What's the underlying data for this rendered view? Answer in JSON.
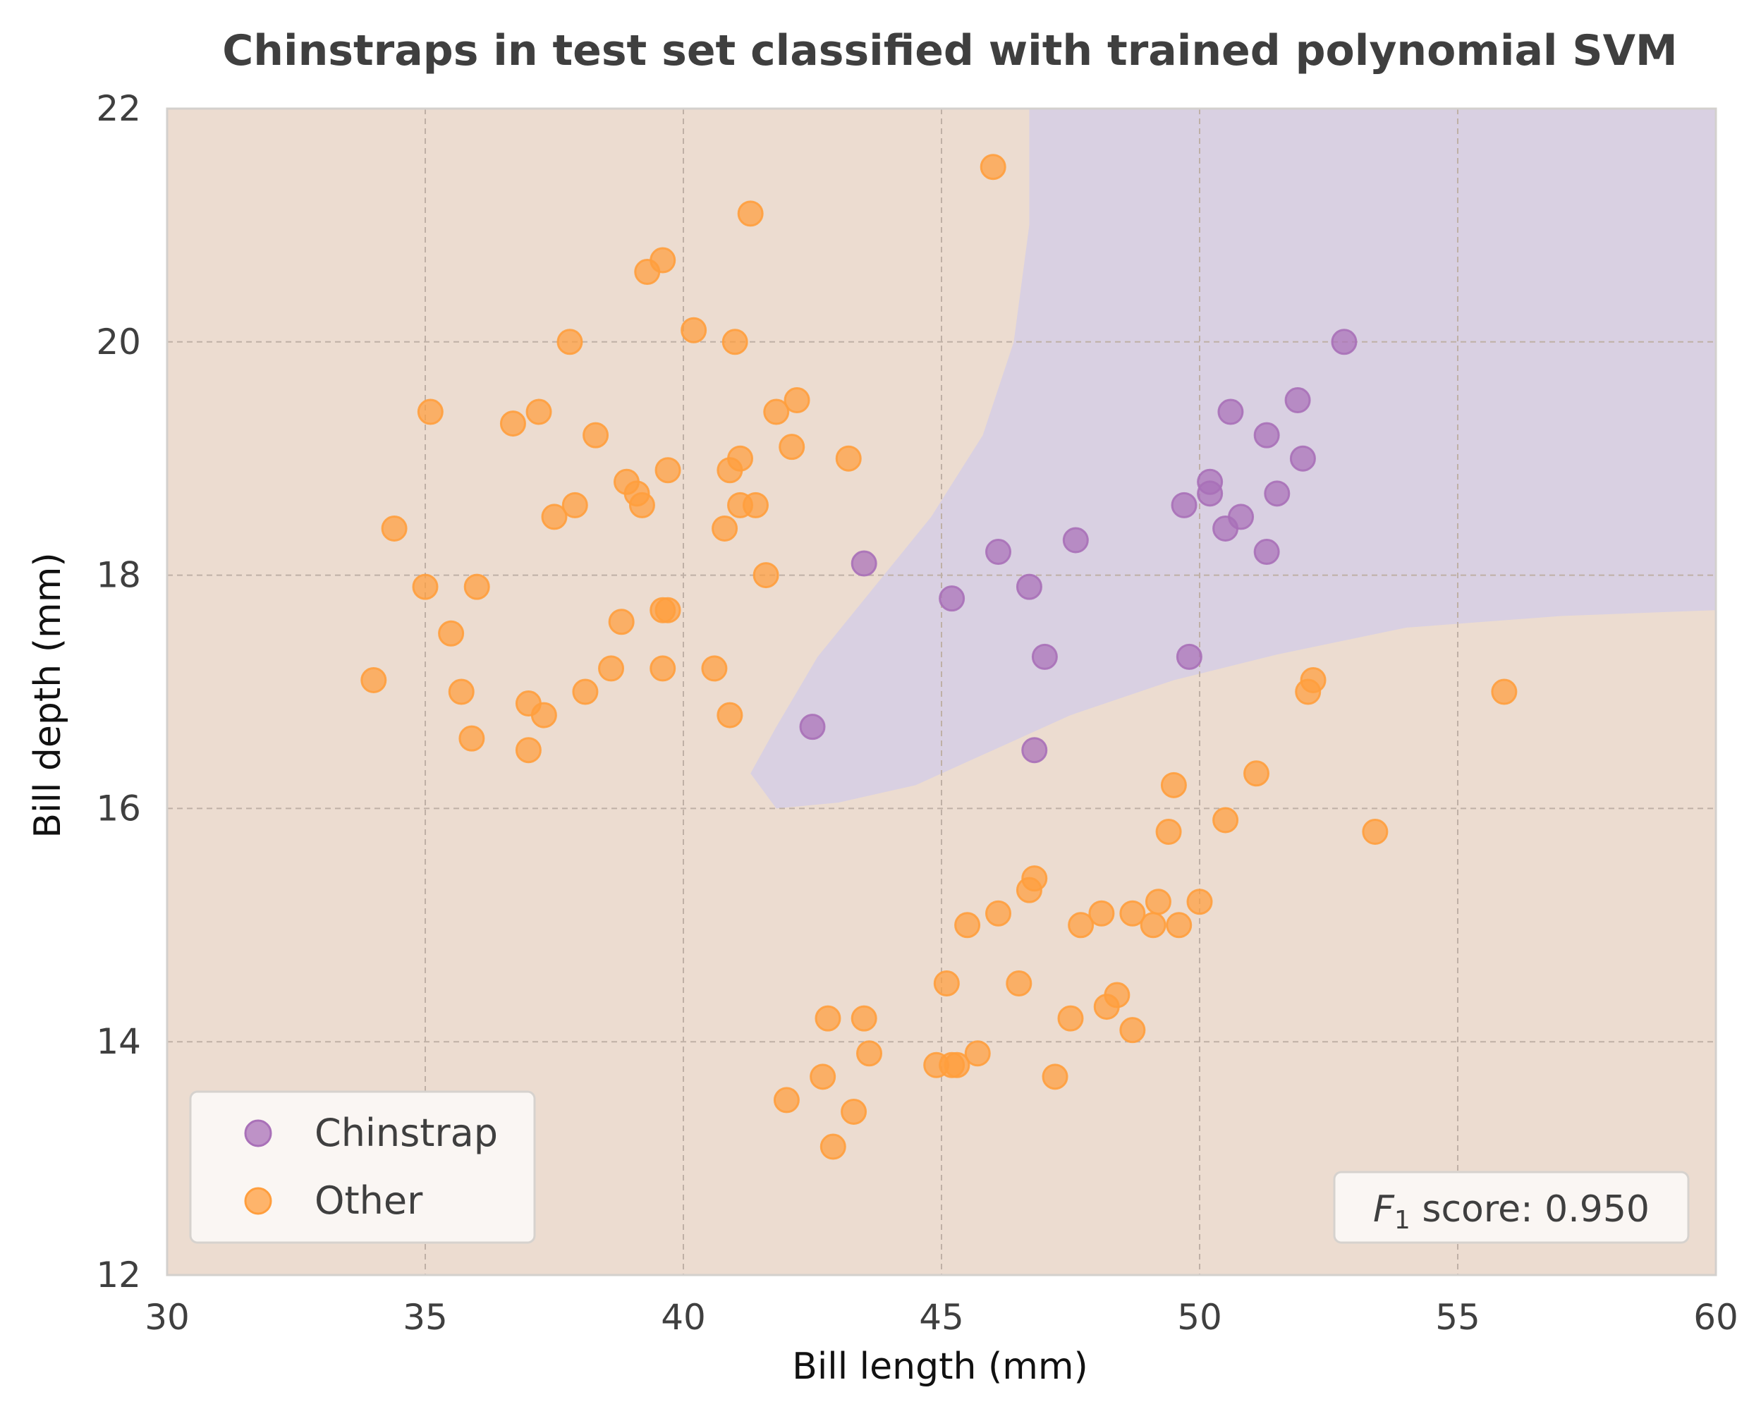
{
  "chart_data": {
    "type": "scatter",
    "title": "Chinstraps in test set classified with trained polynomial SVM",
    "xlabel": "Bill length (mm)",
    "ylabel": "Bill depth (mm)",
    "xlim": [
      30,
      60
    ],
    "ylim": [
      12,
      22
    ],
    "xticks": [
      "30",
      "35",
      "40",
      "45",
      "50",
      "55",
      "60"
    ],
    "yticks": [
      "12",
      "14",
      "16",
      "18",
      "20",
      "22"
    ],
    "grid": true,
    "legend_position": "lower-left",
    "colors": {
      "background_other": "#ecdcd0",
      "background_chinstrap": "#d9d0e2",
      "chinstrap": "#a970b8",
      "other": "#ff9e3d"
    },
    "annotation": {
      "prefix": "F",
      "subscript": "1",
      "text": " score: 0.950",
      "position": "bottom-right"
    },
    "decision_region": {
      "label": "Chinstrap",
      "boundary": [
        [
          46.7,
          22.0
        ],
        [
          46.7,
          21.0
        ],
        [
          46.4,
          20.0
        ],
        [
          45.8,
          19.2
        ],
        [
          44.8,
          18.5
        ],
        [
          43.7,
          17.9
        ],
        [
          42.6,
          17.3
        ],
        [
          41.8,
          16.7
        ],
        [
          41.3,
          16.3
        ],
        [
          41.8,
          16.0
        ],
        [
          43.0,
          16.05
        ],
        [
          44.5,
          16.2
        ],
        [
          46.0,
          16.5
        ],
        [
          47.5,
          16.8
        ],
        [
          49.5,
          17.1
        ],
        [
          51.5,
          17.32
        ],
        [
          54.0,
          17.55
        ],
        [
          57.0,
          17.65
        ],
        [
          60.0,
          17.7
        ],
        [
          60.0,
          22.0
        ]
      ]
    },
    "series": [
      {
        "name": "Chinstrap",
        "points": [
          [
            52.8,
            20.0
          ],
          [
            51.9,
            19.5
          ],
          [
            50.6,
            19.4
          ],
          [
            51.3,
            19.2
          ],
          [
            52.0,
            19.0
          ],
          [
            50.2,
            18.8
          ],
          [
            51.5,
            18.7
          ],
          [
            50.2,
            18.7
          ],
          [
            49.7,
            18.6
          ],
          [
            50.8,
            18.5
          ],
          [
            50.5,
            18.4
          ],
          [
            47.6,
            18.3
          ],
          [
            46.1,
            18.2
          ],
          [
            51.3,
            18.2
          ],
          [
            43.5,
            18.1
          ],
          [
            46.7,
            17.9
          ],
          [
            45.2,
            17.8
          ],
          [
            47.0,
            17.3
          ],
          [
            49.8,
            17.3
          ],
          [
            42.5,
            16.7
          ],
          [
            46.8,
            16.5
          ]
        ]
      },
      {
        "name": "Other",
        "points": [
          [
            46.0,
            21.5
          ],
          [
            41.3,
            21.1
          ],
          [
            39.6,
            20.7
          ],
          [
            39.3,
            20.6
          ],
          [
            40.2,
            20.1
          ],
          [
            37.8,
            20.0
          ],
          [
            41.0,
            20.0
          ],
          [
            42.2,
            19.5
          ],
          [
            41.8,
            19.4
          ],
          [
            35.1,
            19.4
          ],
          [
            37.2,
            19.4
          ],
          [
            36.7,
            19.3
          ],
          [
            38.3,
            19.2
          ],
          [
            42.1,
            19.1
          ],
          [
            43.2,
            19.0
          ],
          [
            41.1,
            19.0
          ],
          [
            40.9,
            18.9
          ],
          [
            39.7,
            18.9
          ],
          [
            38.9,
            18.8
          ],
          [
            39.1,
            18.7
          ],
          [
            39.2,
            18.6
          ],
          [
            37.9,
            18.6
          ],
          [
            41.1,
            18.6
          ],
          [
            41.4,
            18.6
          ],
          [
            37.5,
            18.5
          ],
          [
            34.4,
            18.4
          ],
          [
            40.8,
            18.4
          ],
          [
            41.6,
            18.0
          ],
          [
            35.0,
            17.9
          ],
          [
            36.0,
            17.9
          ],
          [
            39.6,
            17.7
          ],
          [
            39.7,
            17.7
          ],
          [
            38.8,
            17.6
          ],
          [
            35.5,
            17.5
          ],
          [
            38.6,
            17.2
          ],
          [
            39.6,
            17.2
          ],
          [
            40.6,
            17.2
          ],
          [
            34.0,
            17.1
          ],
          [
            35.7,
            17.0
          ],
          [
            38.1,
            17.0
          ],
          [
            37.0,
            16.9
          ],
          [
            37.3,
            16.8
          ],
          [
            40.9,
            16.8
          ],
          [
            35.9,
            16.6
          ],
          [
            37.0,
            16.5
          ],
          [
            52.2,
            17.1
          ],
          [
            52.1,
            17.0
          ],
          [
            55.9,
            17.0
          ],
          [
            51.1,
            16.3
          ],
          [
            49.5,
            16.2
          ],
          [
            50.5,
            15.9
          ],
          [
            49.4,
            15.8
          ],
          [
            53.4,
            15.8
          ],
          [
            46.8,
            15.4
          ],
          [
            46.7,
            15.3
          ],
          [
            49.2,
            15.2
          ],
          [
            50.0,
            15.2
          ],
          [
            46.1,
            15.1
          ],
          [
            48.1,
            15.1
          ],
          [
            48.7,
            15.1
          ],
          [
            45.5,
            15.0
          ],
          [
            47.7,
            15.0
          ],
          [
            49.1,
            15.0
          ],
          [
            49.6,
            15.0
          ],
          [
            45.1,
            14.5
          ],
          [
            46.5,
            14.5
          ],
          [
            48.4,
            14.4
          ],
          [
            48.2,
            14.3
          ],
          [
            42.8,
            14.2
          ],
          [
            43.5,
            14.2
          ],
          [
            47.5,
            14.2
          ],
          [
            48.7,
            14.1
          ],
          [
            43.6,
            13.9
          ],
          [
            45.7,
            13.9
          ],
          [
            44.9,
            13.8
          ],
          [
            45.2,
            13.8
          ],
          [
            45.3,
            13.8
          ],
          [
            42.7,
            13.7
          ],
          [
            47.2,
            13.7
          ],
          [
            42.0,
            13.5
          ],
          [
            43.3,
            13.4
          ],
          [
            42.9,
            13.1
          ]
        ]
      }
    ]
  }
}
